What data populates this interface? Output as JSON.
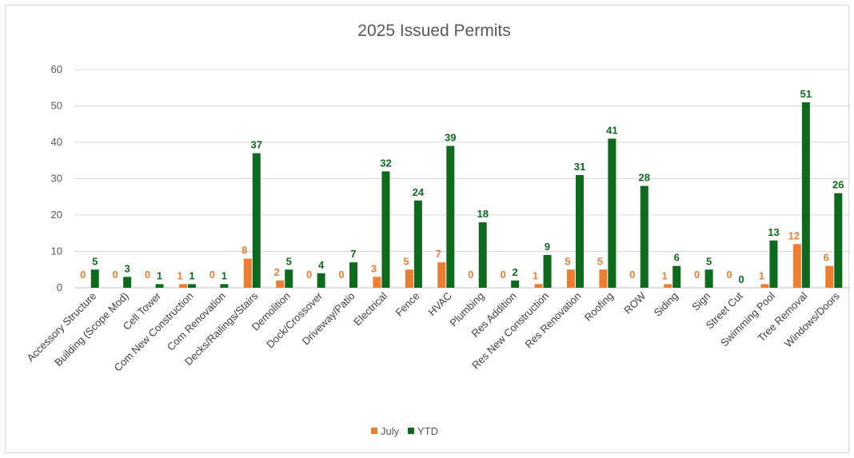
{
  "chart_data": {
    "type": "bar",
    "title": "2025 Issued Permits",
    "categories": [
      "Accessory Structure",
      "Building (Scope Mod)",
      "Cell Tower",
      "Com New Construction",
      "Com Renovation",
      "Decks/Railings/Stairs",
      "Demolition",
      "Dock/Crossover",
      "Driveway/Patio",
      "Electrical",
      "Fence",
      "HVAC",
      "Plumbing",
      "Res Addition",
      "Res New Construction",
      "Res Renovation",
      "Roofing",
      "ROW",
      "Siding",
      "Sign",
      "Street Cut",
      "Swimming Pool",
      "Tree Removal",
      "Windows/Doors"
    ],
    "series": [
      {
        "name": "July",
        "color": "#ED7D31",
        "values": [
          0,
          0,
          0,
          1,
          0,
          8,
          2,
          0,
          0,
          3,
          5,
          7,
          0,
          0,
          1,
          5,
          5,
          0,
          1,
          0,
          0,
          1,
          12,
          6
        ]
      },
      {
        "name": "YTD",
        "color": "#0E6B1E",
        "values": [
          5,
          3,
          1,
          1,
          1,
          37,
          5,
          4,
          7,
          32,
          24,
          39,
          18,
          2,
          9,
          31,
          41,
          28,
          6,
          5,
          0,
          13,
          51,
          26
        ]
      }
    ],
    "yticks": [
      0,
      10,
      20,
      30,
      40,
      50,
      60
    ],
    "ylim": [
      0,
      60
    ],
    "grid": true,
    "legend": "bottom",
    "xlabel": "",
    "ylabel": ""
  }
}
